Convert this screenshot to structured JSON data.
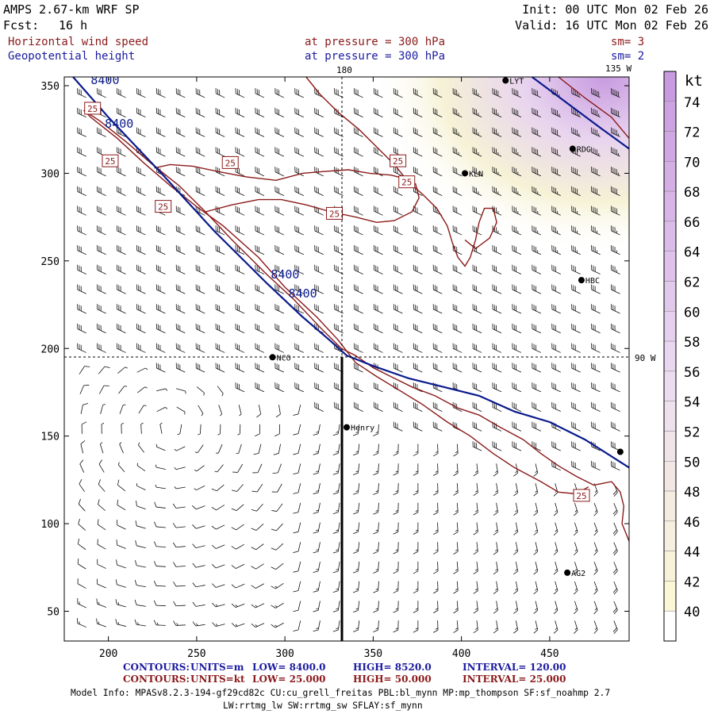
{
  "header": {
    "title": "AMPS 2.67-km WRF SP",
    "fcst_label": "Fcst:",
    "fcst_value": "16 h",
    "init": "Init: 00 UTC Mon 02 Feb 26",
    "valid": "Valid: 16 UTC Mon 02 Feb 26",
    "field1_name": "Horizontal wind speed",
    "field1_level": "at pressure =  300 hPa",
    "field1_sm": "sm= 3",
    "field2_name": "Geopotential height",
    "field2_level": "at pressure =  300 hPa",
    "field2_sm": "sm= 2"
  },
  "map": {
    "lon_labels": {
      "lon180": "180",
      "lon135w": "135 W",
      "lon90w": "90 W"
    },
    "stations": [
      {
        "id": "LYT",
        "label": "LYT",
        "x": 425,
        "y": 353
      },
      {
        "id": "RDG",
        "label": "RDG",
        "x": 463,
        "y": 314
      },
      {
        "id": "KLN",
        "label": "KLN",
        "x": 402,
        "y": 300
      },
      {
        "id": "HBC",
        "label": "HBC",
        "x": 468,
        "y": 239
      },
      {
        "id": "NCO",
        "label": "NCO",
        "x": 293,
        "y": 195
      },
      {
        "id": "Henry",
        "label": "Henry",
        "x": 335,
        "y": 155
      },
      {
        "id": "AG2",
        "label": "AG2",
        "x": 460,
        "y": 72
      },
      {
        "id": "EDGE",
        "label": "",
        "x": 490,
        "y": 141
      }
    ],
    "height_contours": [
      {
        "level": "8400",
        "points": [
          [
            180,
            355
          ],
          [
            200,
            332
          ],
          [
            230,
            300
          ],
          [
            260,
            267
          ],
          [
            290,
            237
          ],
          [
            310,
            218
          ],
          [
            325,
            205
          ],
          [
            335,
            196
          ],
          [
            350,
            190
          ],
          [
            370,
            183
          ],
          [
            390,
            178
          ],
          [
            410,
            173
          ],
          [
            430,
            164
          ],
          [
            450,
            158
          ],
          [
            470,
            148
          ],
          [
            495,
            132
          ]
        ]
      }
    ],
    "height_contour_ne": [
      [
        440,
        355
      ],
      [
        460,
        340
      ],
      [
        480,
        325
      ],
      [
        495,
        314
      ]
    ],
    "height_labels": [
      {
        "text": "8400",
        "x": 190,
        "y": 351
      },
      {
        "text": "8400",
        "x": 198,
        "y": 326
      },
      {
        "text": "8400",
        "x": 292,
        "y": 240
      },
      {
        "text": "8400",
        "x": 302,
        "y": 229
      }
    ],
    "speed_contour_25_main": [
      [
        186,
        336
      ],
      [
        195,
        330
      ],
      [
        210,
        318
      ],
      [
        225,
        305
      ],
      [
        240,
        293
      ],
      [
        255,
        278
      ],
      [
        270,
        262
      ],
      [
        290,
        242
      ],
      [
        305,
        228
      ],
      [
        320,
        212
      ],
      [
        332,
        200
      ],
      [
        340,
        196
      ],
      [
        350,
        189
      ],
      [
        360,
        184
      ],
      [
        372,
        178
      ],
      [
        385,
        173
      ],
      [
        398,
        166
      ],
      [
        410,
        162
      ],
      [
        422,
        155
      ],
      [
        435,
        148
      ],
      [
        445,
        140
      ],
      [
        455,
        133
      ],
      [
        465,
        127
      ],
      [
        475,
        122
      ],
      [
        485,
        124
      ],
      [
        490,
        118
      ],
      [
        492,
        110
      ],
      [
        491,
        100
      ],
      [
        495,
        90
      ]
    ],
    "speed_contour_25_lower": [
      [
        186,
        336
      ],
      [
        190,
        332
      ],
      [
        205,
        320
      ],
      [
        220,
        306
      ],
      [
        235,
        293
      ],
      [
        250,
        281
      ],
      [
        265,
        270
      ],
      [
        285,
        252
      ],
      [
        300,
        235
      ],
      [
        318,
        218
      ],
      [
        330,
        205
      ],
      [
        340,
        192
      ],
      [
        352,
        184
      ],
      [
        365,
        176
      ],
      [
        378,
        168
      ],
      [
        392,
        158
      ],
      [
        405,
        150
      ],
      [
        418,
        140
      ],
      [
        430,
        132
      ],
      [
        445,
        124
      ],
      [
        455,
        118
      ],
      [
        465,
        117
      ],
      [
        472,
        121
      ]
    ],
    "speed_contour_25_north": [
      [
        312,
        355
      ],
      [
        320,
        345
      ],
      [
        330,
        335
      ],
      [
        342,
        325
      ],
      [
        352,
        315
      ],
      [
        362,
        305
      ],
      [
        370,
        295
      ],
      [
        378,
        288
      ],
      [
        386,
        280
      ],
      [
        392,
        270
      ],
      [
        395,
        260
      ],
      [
        398,
        252
      ],
      [
        402,
        247
      ],
      [
        405,
        252
      ],
      [
        408,
        262
      ],
      [
        410,
        272
      ],
      [
        413,
        280
      ],
      [
        418,
        280
      ],
      [
        420,
        272
      ],
      [
        416,
        263
      ],
      [
        408,
        257
      ],
      [
        402,
        262
      ]
    ],
    "speed_contour_25_loop": [
      [
        226,
        303
      ],
      [
        235,
        305
      ],
      [
        248,
        304
      ],
      [
        262,
        301
      ],
      [
        278,
        298
      ],
      [
        295,
        296
      ],
      [
        310,
        300
      ],
      [
        322,
        301
      ],
      [
        336,
        302
      ],
      [
        348,
        300
      ],
      [
        360,
        299
      ],
      [
        368,
        297
      ],
      [
        374,
        294
      ],
      [
        376,
        286
      ],
      [
        372,
        278
      ],
      [
        362,
        273
      ],
      [
        352,
        272
      ],
      [
        340,
        275
      ],
      [
        326,
        278
      ],
      [
        312,
        282
      ],
      [
        298,
        285
      ],
      [
        285,
        285
      ],
      [
        270,
        282
      ],
      [
        255,
        278
      ]
    ],
    "speed_contour_ne": [
      [
        455,
        355
      ],
      [
        470,
        343
      ],
      [
        485,
        332
      ],
      [
        495,
        320
      ]
    ],
    "speed_labels": [
      {
        "text": "25",
        "x": 187,
        "y": 336
      },
      {
        "text": "25",
        "x": 197,
        "y": 306
      },
      {
        "text": "25",
        "x": 265,
        "y": 305
      },
      {
        "text": "25",
        "x": 360,
        "y": 306
      },
      {
        "text": "25",
        "x": 365,
        "y": 294
      },
      {
        "text": "25",
        "x": 324,
        "y": 276
      },
      {
        "text": "25",
        "x": 227,
        "y": 280
      },
      {
        "text": "25",
        "x": 464,
        "y": 115
      }
    ]
  },
  "xaxis_ticks": [
    "200",
    "250",
    "300",
    "350",
    "400",
    "450"
  ],
  "yaxis_ticks": [
    "50",
    "100",
    "150",
    "200",
    "250",
    "300",
    "350"
  ],
  "colorbar": {
    "unit": "kt",
    "labels": [
      "74",
      "72",
      "70",
      "68",
      "66",
      "64",
      "62",
      "60",
      "58",
      "56",
      "54",
      "52",
      "50",
      "48",
      "46",
      "44",
      "42",
      "40"
    ]
  },
  "footer": {
    "line1": {
      "prefix": "CONTOURS:",
      "units": "UNITS=m",
      "low": "LOW=  8400.0",
      "high": "HIGH=  8520.0",
      "interval": "INTERVAL=   120.00"
    },
    "line2": {
      "prefix": "CONTOURS:",
      "units": "UNITS=kt",
      "low": "LOW=  25.000",
      "high": "HIGH=  50.000",
      "interval": "INTERVAL=   25.000"
    },
    "model_info": "Model Info: MPASv8.2.3-194-gf29cd82c CU:cu_grell_freitas PBL:bl_mynn MP:mp_thompson SF:sf_noahmp 2.7",
    "model_info2": "LW:rrtmg_lw SW:rrtmg_sw SFLAY:sf_mynn"
  },
  "colors": {
    "height_contour": "#0a1a8c",
    "speed_contour": "#8b1a1a",
    "header_red": "#8b1a1a",
    "header_blue": "#1a1aa0",
    "barb": "#111111"
  }
}
